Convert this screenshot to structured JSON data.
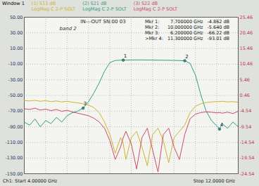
{
  "chart_data": {
    "type": "line",
    "title": "Window 1",
    "x_start_label": "Ch1: Start 4.00000 GHz",
    "x_stop_label": "Stop 12.0000 GHz",
    "annotations": [
      "IN---OUT SN:00 03",
      "band 2"
    ],
    "grid": true,
    "tick_labels": "y",
    "xlim": [
      4,
      12
    ],
    "xticks": [
      4,
      4.8,
      5.6,
      6.4,
      7.2,
      8,
      8.8,
      9.6,
      10.4,
      11.2,
      12
    ],
    "ylim": [
      -150,
      50
    ],
    "yticks": [
      {
        "value": -150,
        "label": "-150.00"
      },
      {
        "value": -130,
        "label": "-130.00"
      },
      {
        "value": -110,
        "label": "-110.00"
      },
      {
        "value": -90,
        "label": "-90.00"
      },
      {
        "value": -70,
        "label": "-70.00"
      },
      {
        "value": -50,
        "label": "-50.00"
      },
      {
        "value": -30,
        "label": "-30.00"
      },
      {
        "value": -10,
        "label": "-10.00"
      },
      {
        "value": 10,
        "label": "10.00"
      },
      {
        "value": 30,
        "label": "30.00"
      },
      {
        "value": 50,
        "label": "50.00"
      }
    ],
    "y2lim": [
      -24.54,
      25.46
    ],
    "y2ticks": [
      -24.54,
      -19.54,
      -14.54,
      -9.54,
      -4.54,
      0.46,
      5.46,
      10.46,
      15.46,
      20.46,
      25.46
    ],
    "x": [
      4.0,
      4.2,
      4.4,
      4.6,
      4.8,
      5.0,
      5.2,
      5.4,
      5.6,
      5.8,
      6.0,
      6.2,
      6.4,
      6.6,
      6.8,
      7.0,
      7.2,
      7.4,
      7.6,
      7.7,
      7.8,
      8.0,
      8.2,
      8.4,
      8.6,
      8.8,
      9.0,
      9.2,
      9.4,
      9.6,
      9.8,
      10.0,
      10.2,
      10.4,
      10.6,
      10.8,
      11.0,
      11.2,
      11.3,
      11.4,
      11.6,
      11.8,
      12.0
    ],
    "series": [
      {
        "name": "(1) S11 dB",
        "description": "LogMag C 2-P SOLT",
        "color": "#cdb52e",
        "axis": "y2",
        "values": [
          -1.2,
          -1.3,
          -1.1,
          -1.4,
          -1.2,
          -1.5,
          -1.3,
          -1.6,
          -1.4,
          -1.7,
          -1.9,
          -2.2,
          -2.6,
          -3.4,
          -5.0,
          -8,
          -12,
          -18,
          -13,
          -15,
          -20,
          -13,
          -11,
          -16,
          -22,
          -12,
          -10,
          -14,
          -21,
          -13,
          -11,
          -9,
          -5,
          -3,
          -2.2,
          -1.8,
          -1.6,
          -1.5,
          -1.5,
          -1.4,
          -1.6,
          -1.5,
          -1.7
        ]
      },
      {
        "name": "(2) S21 dB",
        "description": "LogMag C 2-P SOLT",
        "color": "#2f9f86",
        "values": [
          -84,
          -88,
          -80,
          -90,
          -82,
          -86,
          -78,
          -84,
          -76,
          -72,
          -70,
          -66.22,
          -58,
          -47,
          -34,
          -19,
          -8,
          -5.3,
          -4.9,
          -4.862,
          -4.8,
          -4.7,
          -4.6,
          -4.6,
          -4.7,
          -4.8,
          -4.9,
          -5.0,
          -5.1,
          -5.2,
          -5.4,
          -5.64,
          -9,
          -24,
          -49,
          -70,
          -82,
          -89,
          -93.01,
          -86,
          -92,
          -84,
          -90
        ]
      },
      {
        "name": "(3) S22 dB",
        "description": "LogMag C 2-P SOLT",
        "color": "#cf4a66",
        "axis": "y2",
        "values": [
          -3.8,
          -4.0,
          -3.6,
          -4.2,
          -3.9,
          -4.4,
          -4.0,
          -4.6,
          -4.3,
          -4.8,
          -5.2,
          -5.6,
          -6.0,
          -6.8,
          -8.0,
          -10,
          -14,
          -20,
          -16,
          -13,
          -11,
          -15,
          -23,
          -13,
          -10,
          -17,
          -24,
          -12,
          -10,
          -16,
          -20,
          -12,
          -7,
          -5.5,
          -5,
          -4.8,
          -4.9,
          -5.1,
          -5.0,
          -5.2,
          -4.9,
          -5.3,
          -4.6
        ]
      }
    ],
    "markers": [
      {
        "id": "1",
        "name": "Mkr 1:",
        "x": 7.7,
        "y": -4.862,
        "x_label": "7.700000 GHz",
        "y_label": "-4.862 dB"
      },
      {
        "id": "2",
        "name": "Mkr 2:",
        "x": 10.0,
        "y": -5.64,
        "x_label": "10.000000 GHz",
        "y_label": "-5.640 dB"
      },
      {
        "id": "3",
        "name": "Mkr 3:",
        "x": 6.2,
        "y": -66.22,
        "x_label": "6.200000 GHz",
        "y_label": "-66.22 dB"
      },
      {
        "id": "4",
        "name": ">Mkr 4:",
        "x": 11.3,
        "y": -93.01,
        "x_label": "11.300000 GHz",
        "y_label": "-93.01 dB"
      }
    ]
  }
}
